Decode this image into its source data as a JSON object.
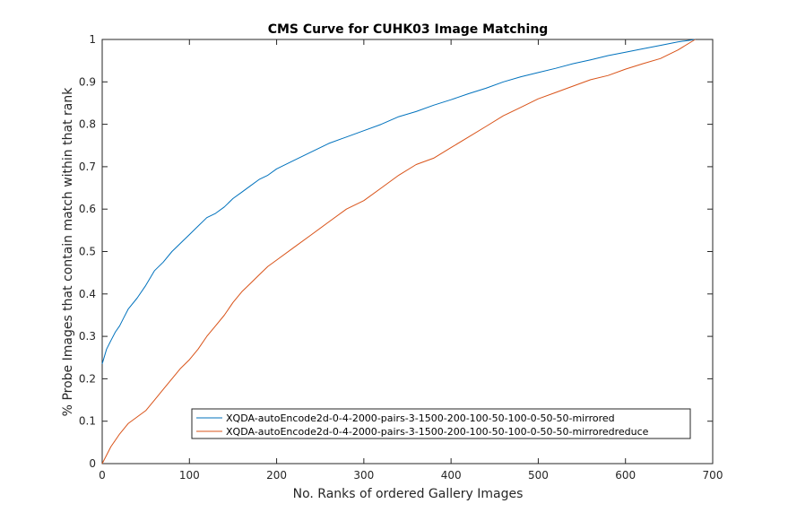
{
  "chart_data": {
    "type": "line",
    "title": "CMS Curve for CUHK03 Image Matching",
    "xlabel": "No. Ranks of ordered Gallery Images",
    "ylabel": "% Probe Images that contain match within that rank",
    "xlim": [
      0,
      700
    ],
    "ylim": [
      0,
      1
    ],
    "xticks": [
      "0",
      "100",
      "200",
      "300",
      "400",
      "500",
      "600",
      "700"
    ],
    "yticks": [
      "0",
      "0.1",
      "0.2",
      "0.3",
      "0.4",
      "0.5",
      "0.6",
      "0.7",
      "0.8",
      "0.9",
      "1"
    ],
    "grid": false,
    "legend_position": "bottom-right",
    "series": [
      {
        "name": "XQDA-autoEncode2d-0-4-2000-pairs-3-1500-200-100-50-100-0-50-50-mirrored",
        "color": "#0072BD",
        "x": [
          0,
          5,
          10,
          15,
          20,
          25,
          30,
          40,
          50,
          60,
          70,
          80,
          90,
          100,
          110,
          120,
          130,
          140,
          150,
          160,
          170,
          180,
          190,
          200,
          220,
          240,
          260,
          280,
          300,
          320,
          340,
          360,
          380,
          400,
          420,
          440,
          460,
          480,
          500,
          520,
          540,
          560,
          580,
          600,
          620,
          640,
          660,
          680
        ],
        "y": [
          0.235,
          0.27,
          0.29,
          0.31,
          0.325,
          0.345,
          0.365,
          0.39,
          0.42,
          0.455,
          0.475,
          0.5,
          0.52,
          0.54,
          0.56,
          0.58,
          0.59,
          0.605,
          0.625,
          0.64,
          0.655,
          0.67,
          0.68,
          0.695,
          0.715,
          0.735,
          0.755,
          0.77,
          0.785,
          0.8,
          0.818,
          0.83,
          0.845,
          0.858,
          0.872,
          0.885,
          0.9,
          0.912,
          0.922,
          0.932,
          0.943,
          0.952,
          0.962,
          0.97,
          0.978,
          0.986,
          0.994,
          1.0
        ]
      },
      {
        "name": "XQDA-autoEncode2d-0-4-2000-pairs-3-1500-200-100-50-100-0-50-50-mirroredreduce",
        "color": "#D95319",
        "x": [
          0,
          5,
          10,
          20,
          30,
          40,
          50,
          60,
          70,
          80,
          90,
          100,
          110,
          120,
          130,
          140,
          150,
          160,
          170,
          180,
          190,
          200,
          220,
          240,
          260,
          280,
          300,
          320,
          340,
          360,
          380,
          400,
          420,
          440,
          460,
          480,
          500,
          520,
          540,
          560,
          580,
          600,
          620,
          640,
          660,
          680
        ],
        "y": [
          0.0,
          0.02,
          0.04,
          0.07,
          0.095,
          0.11,
          0.125,
          0.15,
          0.175,
          0.2,
          0.225,
          0.245,
          0.27,
          0.3,
          0.325,
          0.35,
          0.38,
          0.405,
          0.425,
          0.445,
          0.465,
          0.48,
          0.51,
          0.54,
          0.57,
          0.6,
          0.62,
          0.65,
          0.68,
          0.705,
          0.72,
          0.745,
          0.77,
          0.795,
          0.82,
          0.84,
          0.86,
          0.875,
          0.89,
          0.905,
          0.915,
          0.93,
          0.943,
          0.955,
          0.975,
          1.0
        ]
      }
    ]
  }
}
